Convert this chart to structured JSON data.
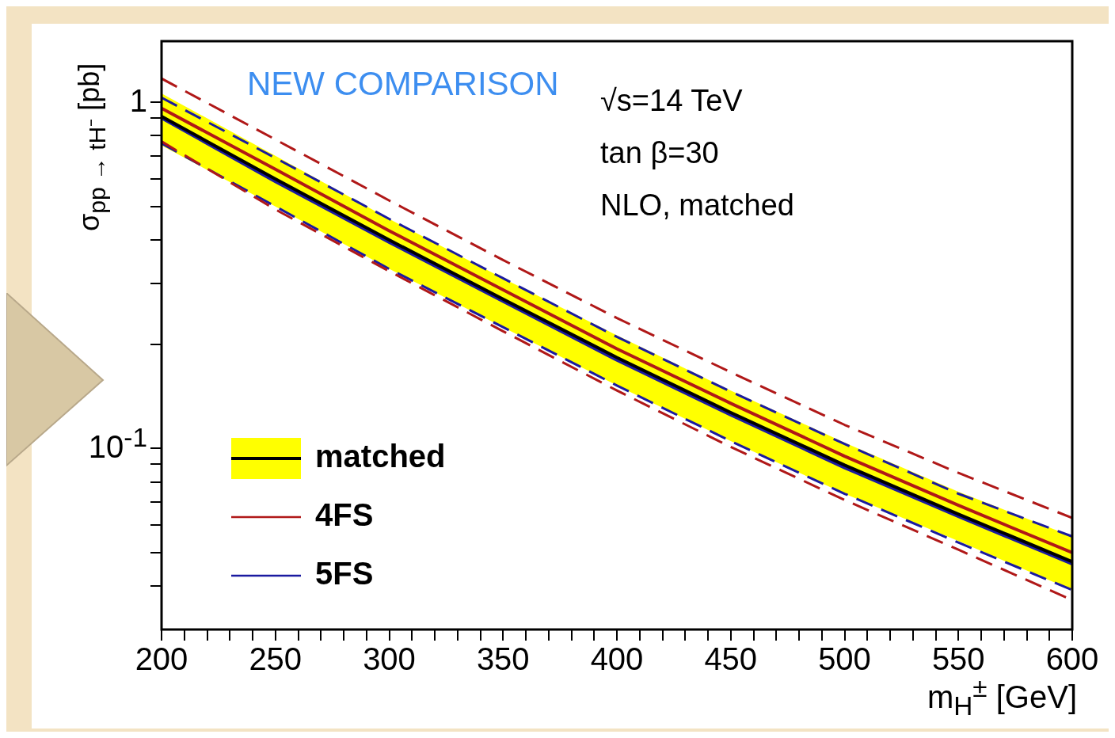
{
  "chart_data": {
    "type": "line",
    "xlabel": "m$_{H}$$^{±}$  [GeV]",
    "ylabel": "σ$_{pp → tH⁻}$ [pb]",
    "annotations": [
      "NEW COMPARISON",
      "√s=14 TeV",
      "tan β=30",
      "NLO, matched"
    ],
    "x": [
      200,
      250,
      300,
      350,
      400,
      450,
      500,
      550,
      600
    ],
    "series": [
      {
        "name": "matched",
        "color": "#000000",
        "values": [
          0.91,
          0.6,
          0.4,
          0.27,
          0.183,
          0.127,
          0.0895,
          0.0646,
          0.0471
        ],
        "lower": [
          0.75,
          0.5,
          0.33,
          0.224,
          0.152,
          0.105,
          0.074,
          0.054,
          0.039
        ],
        "upper": [
          1.06,
          0.7,
          0.46,
          0.31,
          0.212,
          0.147,
          0.104,
          0.075,
          0.0557
        ]
      },
      {
        "name": "4FS",
        "color": "#b01818",
        "values": [
          0.96,
          0.64,
          0.425,
          0.287,
          0.194,
          0.135,
          0.095,
          0.0685,
          0.05
        ]
      },
      {
        "name": "5FS",
        "color": "#1a1aa0",
        "values": [
          0.9,
          0.59,
          0.394,
          0.266,
          0.18,
          0.125,
          0.088,
          0.0636,
          0.0464
        ]
      },
      {
        "color": "#b01818",
        "line_style": "dashed",
        "values": [
          1.17,
          0.78,
          0.52,
          0.35,
          0.238,
          0.166,
          0.117,
          0.085,
          0.063
        ]
      },
      {
        "color": "#b01818",
        "line_style": "dashed",
        "values": [
          0.77,
          0.49,
          0.325,
          0.218,
          0.147,
          0.101,
          0.071,
          0.051,
          0.0365
        ]
      },
      {
        "color": "#1a1aa0",
        "line_style": "dashed",
        "values": [
          1.03,
          0.69,
          0.46,
          0.31,
          0.21,
          0.146,
          0.103,
          0.074,
          0.0557
        ]
      },
      {
        "color": "#1a1aa0",
        "line_style": "dashed",
        "values": [
          0.76,
          0.5,
          0.33,
          0.224,
          0.152,
          0.105,
          0.074,
          0.0535,
          0.039
        ]
      }
    ],
    "xlim": [
      200,
      600
    ],
    "xticks": [
      200,
      {
        "value": 210,
        "label": null
      },
      {
        "value": 220,
        "label": null
      },
      {
        "value": 230,
        "label": null
      },
      {
        "value": 240,
        "label": null
      },
      250,
      {
        "value": 260,
        "label": null
      },
      {
        "value": 270,
        "label": null
      },
      {
        "value": 280,
        "label": null
      },
      {
        "value": 290,
        "label": null
      },
      300,
      {
        "value": 310,
        "label": null
      },
      {
        "value": 320,
        "label": null
      },
      {
        "value": 330,
        "label": null
      },
      {
        "value": 340,
        "label": null
      },
      350,
      {
        "value": 360,
        "label": null
      },
      {
        "value": 370,
        "label": null
      },
      {
        "value": 380,
        "label": null
      },
      {
        "value": 390,
        "label": null
      },
      400,
      {
        "value": 410,
        "label": null
      },
      {
        "value": 420,
        "label": null
      },
      {
        "value": 430,
        "label": null
      },
      {
        "value": 440,
        "label": null
      },
      450,
      {
        "value": 460,
        "label": null
      },
      {
        "value": 470,
        "label": null
      },
      {
        "value": 480,
        "label": null
      },
      {
        "value": 490,
        "label": null
      },
      500,
      {
        "value": 510,
        "label": null
      },
      {
        "value": 520,
        "label": null
      },
      {
        "value": 530,
        "label": null
      },
      {
        "value": 540,
        "label": null
      },
      550,
      {
        "value": 560,
        "label": null
      },
      {
        "value": 570,
        "label": null
      },
      {
        "value": 580,
        "label": null
      },
      {
        "value": 590,
        "label": null
      },
      600
    ],
    "ylim": [
      0.03,
      1.5
    ],
    "yticks": [
      {
        "value": 0.04,
        "label": null
      },
      {
        "value": 0.05,
        "label": null
      },
      {
        "value": 0.06,
        "label": null
      },
      {
        "value": 0.07,
        "label": null
      },
      {
        "value": 0.08,
        "label": null
      },
      {
        "value": 0.09,
        "label": null
      },
      {
        "value": 0.1,
        "label": "10$^{-1}$"
      },
      {
        "value": 0.2,
        "label": null
      },
      {
        "value": 0.3,
        "label": null
      },
      {
        "value": 0.4,
        "label": null
      },
      {
        "value": 0.5,
        "label": null
      },
      {
        "value": 0.6,
        "label": null
      },
      {
        "value": 0.7,
        "label": null
      },
      {
        "value": 0.8,
        "label": null
      },
      {
        "value": 0.9,
        "label": null
      },
      1
    ],
    "log": true,
    "grid": false,
    "legend": "bottom left"
  }
}
